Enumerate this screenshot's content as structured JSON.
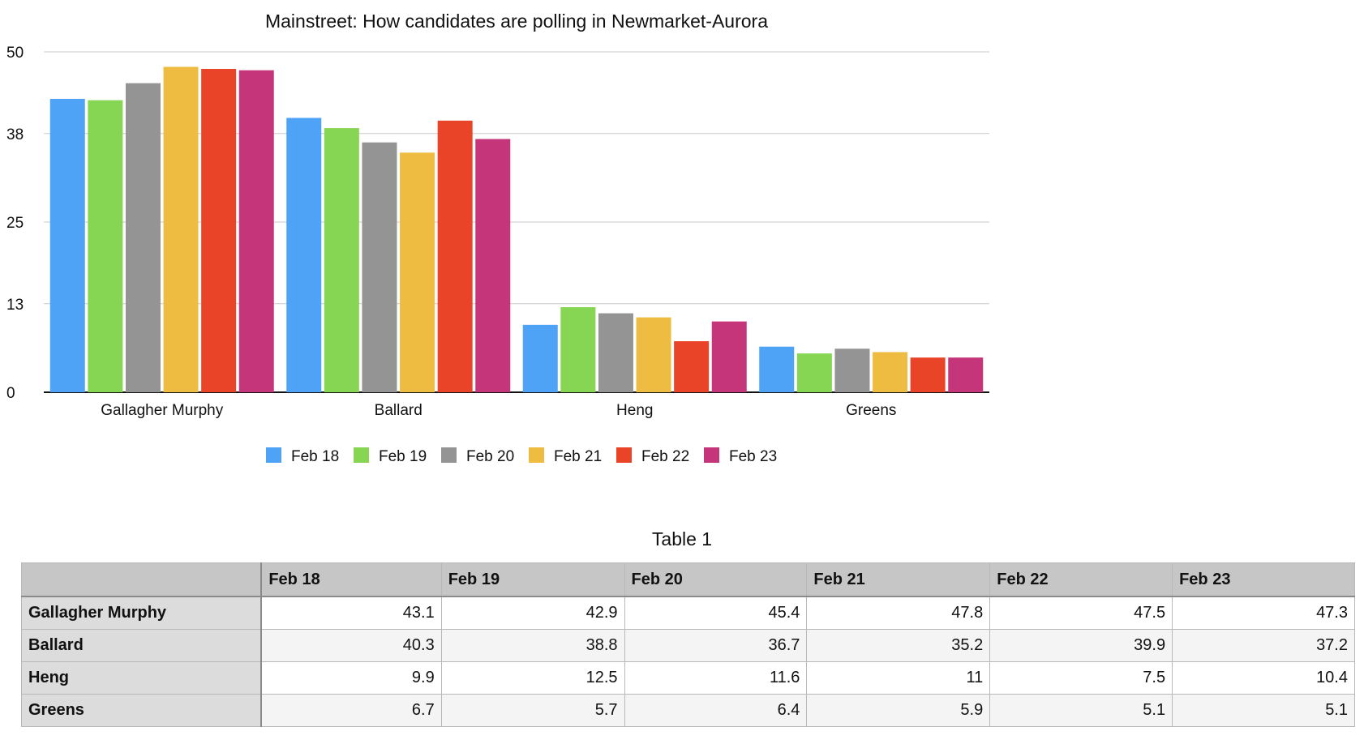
{
  "chart_data": {
    "type": "bar",
    "title": "Mainstreet: How candidates are polling in Newmarket-Aurora",
    "xlabel": "",
    "ylabel": "",
    "ylim": [
      0,
      50
    ],
    "yticks": [
      "0",
      "13",
      "25",
      "38",
      "50"
    ],
    "grid": true,
    "legend_position": "bottom",
    "categories": [
      "Gallagher Murphy",
      "Ballard",
      "Heng",
      "Greens"
    ],
    "series": [
      {
        "name": "Feb 18",
        "color": "#4ea3f7",
        "values": [
          43.1,
          40.3,
          9.9,
          6.7
        ]
      },
      {
        "name": "Feb 19",
        "color": "#86d653",
        "values": [
          42.9,
          38.8,
          12.5,
          5.7
        ]
      },
      {
        "name": "Feb 20",
        "color": "#949494",
        "values": [
          45.4,
          36.7,
          11.6,
          6.4
        ]
      },
      {
        "name": "Feb 21",
        "color": "#efbc42",
        "values": [
          47.8,
          35.2,
          11,
          5.9
        ]
      },
      {
        "name": "Feb 22",
        "color": "#e94428",
        "values": [
          47.5,
          39.9,
          7.5,
          5.1
        ]
      },
      {
        "name": "Feb 23",
        "color": "#c5357a",
        "values": [
          47.3,
          37.2,
          10.4,
          5.1
        ]
      }
    ]
  },
  "table": {
    "title": "Table 1",
    "columns": [
      "Feb 18",
      "Feb 19",
      "Feb 20",
      "Feb 21",
      "Feb 22",
      "Feb 23"
    ],
    "rows": [
      {
        "label": "Gallagher Murphy",
        "values": [
          "43.1",
          "42.9",
          "45.4",
          "47.8",
          "47.5",
          "47.3"
        ]
      },
      {
        "label": "Ballard",
        "values": [
          "40.3",
          "38.8",
          "36.7",
          "35.2",
          "39.9",
          "37.2"
        ]
      },
      {
        "label": "Heng",
        "values": [
          "9.9",
          "12.5",
          "11.6",
          "11",
          "7.5",
          "10.4"
        ]
      },
      {
        "label": "Greens",
        "values": [
          "6.7",
          "5.7",
          "6.4",
          "5.9",
          "5.1",
          "5.1"
        ]
      }
    ]
  }
}
